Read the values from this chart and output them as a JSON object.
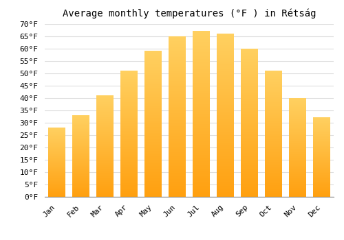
{
  "title": "Average monthly temperatures (°F ) in Rétság",
  "months": [
    "Jan",
    "Feb",
    "Mar",
    "Apr",
    "May",
    "Jun",
    "Jul",
    "Aug",
    "Sep",
    "Oct",
    "Nov",
    "Dec"
  ],
  "values": [
    28,
    33,
    41,
    51,
    59,
    65,
    67,
    66,
    60,
    51,
    40,
    32
  ],
  "bar_color_top": "#FFA500",
  "bar_color_bottom": "#FFD070",
  "background_color": "#FFFFFF",
  "grid_color": "#DDDDDD",
  "ylim": [
    0,
    70
  ],
  "ytick_step": 5,
  "title_fontsize": 10,
  "tick_fontsize": 8,
  "font_family": "monospace"
}
